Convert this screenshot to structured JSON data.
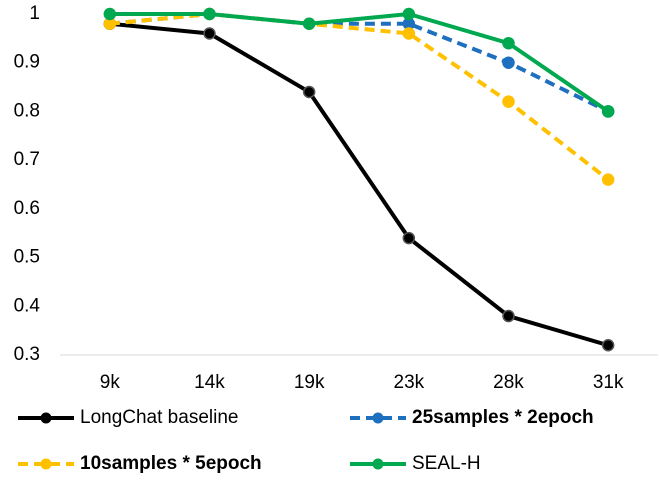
{
  "chart_data": {
    "type": "line",
    "categories": [
      "9k",
      "14k",
      "19k",
      "23k",
      "28k",
      "31k"
    ],
    "series": [
      {
        "name": "LongChat baseline",
        "color": "#000000",
        "dashed": false,
        "label_bold": false,
        "values": [
          0.98,
          0.96,
          0.84,
          0.54,
          0.38,
          0.32
        ]
      },
      {
        "name": "25samples * 2epoch",
        "color": "#1f6fbf",
        "dashed": true,
        "label_bold": true,
        "values": [
          0.98,
          1.0,
          0.98,
          0.98,
          0.9,
          0.8
        ]
      },
      {
        "name": "10samples * 5epoch",
        "color": "#ffc000",
        "dashed": true,
        "label_bold": true,
        "values": [
          0.98,
          1.0,
          0.98,
          0.96,
          0.82,
          0.66
        ]
      },
      {
        "name": "SEAL-H",
        "color": "#00a84f",
        "dashed": false,
        "label_bold": false,
        "values": [
          1.0,
          1.0,
          0.98,
          1.0,
          0.94,
          0.8
        ]
      }
    ],
    "ylim": [
      0.3,
      1
    ],
    "yticks": [
      0.3,
      0.4,
      0.5,
      0.6,
      0.7,
      0.8,
      0.9,
      1
    ],
    "grid": false
  }
}
